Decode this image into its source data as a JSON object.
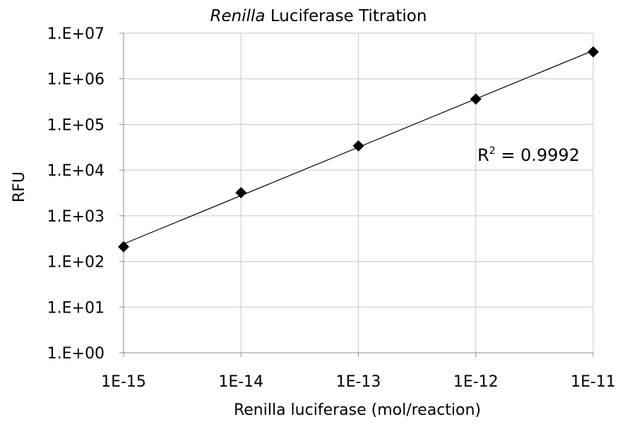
{
  "chart_data": {
    "type": "scatter",
    "title_italic": "Renilla",
    "title_rest": " Luciferase Titration",
    "xlabel": "Renilla luciferase (mol/reaction)",
    "ylabel": "RFU",
    "x_scale": "log",
    "y_scale": "log",
    "xlim": [
      1e-15,
      1e-11
    ],
    "ylim": [
      1,
      10000000
    ],
    "x_ticks": [
      {
        "value": 1e-15,
        "label": "1E-15"
      },
      {
        "value": 1e-14,
        "label": "1E-14"
      },
      {
        "value": 1e-13,
        "label": "1E-13"
      },
      {
        "value": 1e-12,
        "label": "1E-12"
      },
      {
        "value": 1e-11,
        "label": "1E-11"
      }
    ],
    "y_ticks": [
      {
        "value": 1,
        "label": "1.E+00"
      },
      {
        "value": 10,
        "label": "1.E+01"
      },
      {
        "value": 100,
        "label": "1.E+02"
      },
      {
        "value": 1000,
        "label": "1.E+03"
      },
      {
        "value": 10000,
        "label": "1.E+04"
      },
      {
        "value": 100000,
        "label": "1.E+05"
      },
      {
        "value": 1000000,
        "label": "1.E+06"
      },
      {
        "value": 10000000,
        "label": "1.E+07"
      }
    ],
    "grid": true,
    "marker": "diamond",
    "marker_color": "#000000",
    "trendline": true,
    "series": [
      {
        "points": [
          {
            "x": 1e-15,
            "y": 210
          },
          {
            "x": 1e-14,
            "y": 3200
          },
          {
            "x": 1e-13,
            "y": 34000
          },
          {
            "x": 1e-12,
            "y": 360000
          },
          {
            "x": 1e-11,
            "y": 3900000
          }
        ]
      }
    ],
    "annotation": {
      "text_base": "R",
      "text_sup": "2",
      "text_rest": " = 0.9992"
    }
  }
}
